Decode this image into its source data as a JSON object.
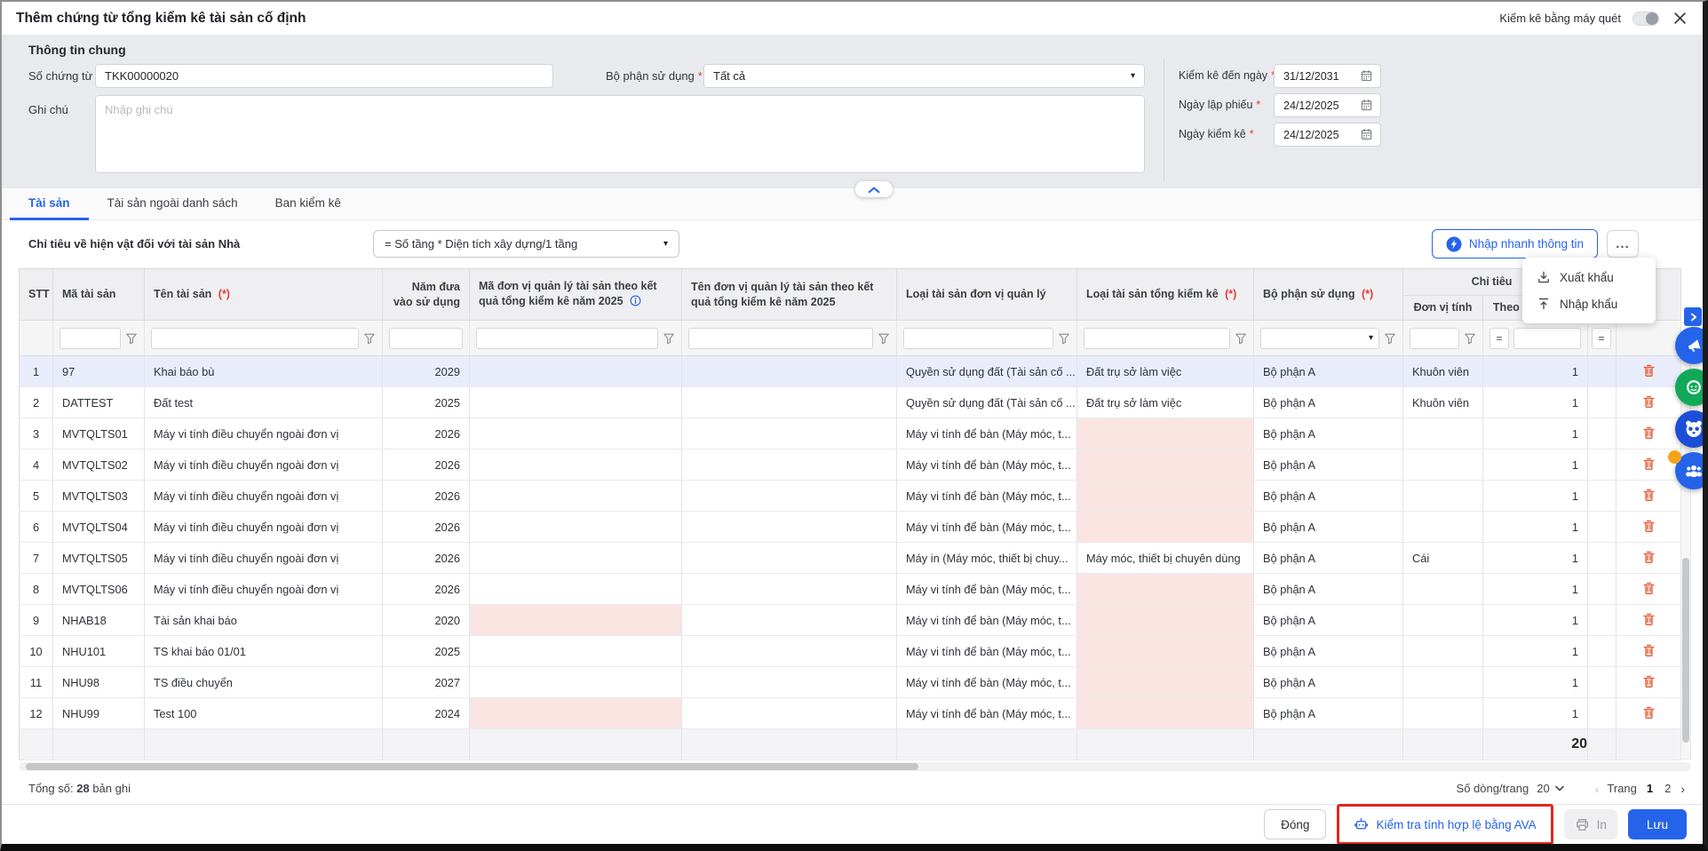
{
  "colors": {
    "accent": "#2563eb",
    "primary_button": "#2563eb",
    "active_tab": "#2563eb",
    "danger_icon": "#e8603c",
    "invalid_cell_bg": "#fae5e2",
    "highlight_row_bg": "#e9ecfb",
    "annotation_box": "#e0281e"
  },
  "titlebar": {
    "title": "Thêm chứng từ tổng kiểm kê tài sản cố định",
    "scan_toggle_label": "Kiểm kê bằng máy quét"
  },
  "general": {
    "section_title": "Thông tin chung",
    "so_chung_tu_label": "Số chứng từ",
    "so_chung_tu_value": "TKK00000020",
    "bo_phan_label": "Bộ phận sử dụng",
    "bo_phan_value": "Tất cả",
    "ghi_chu_label": "Ghi chú",
    "ghi_chu_placeholder": "Nhập ghi chú",
    "kiem_ke_den_ngay_label": "Kiểm kê đến ngày",
    "kiem_ke_den_ngay_value": "31/12/2031",
    "ngay_lap_phieu_label": "Ngày lập phiếu",
    "ngay_lap_phieu_value": "24/12/2025",
    "ngay_kiem_ke_label": "Ngày kiểm kê",
    "ngay_kiem_ke_value": "24/12/2025"
  },
  "tabs": [
    {
      "label": "Tài sản"
    },
    {
      "label": "Tài sản ngoài danh sách"
    },
    {
      "label": "Ban kiểm kê"
    }
  ],
  "toolbar": {
    "criteria_label": "Chỉ tiêu về hiện vật đối với tài sản",
    "criteria_asset_type": "Nhà",
    "formula_value": "= Số tầng * Diện tích xây dựng/1 tầng",
    "quick_input_label": "Nhập nhanh thông tin",
    "more_label": "...",
    "menu_items": [
      {
        "label": "Xuất khẩu"
      },
      {
        "label": "Nhập khẩu"
      }
    ]
  },
  "table": {
    "headers": {
      "stt": "STT",
      "ma": "Mã tài sản",
      "ten": "Tên tài sản",
      "nam": "Năm đưa vào sử dụng",
      "madv": "Mã đơn vị quản lý tài sản theo kết quả tổng kiểm kê năm 2025",
      "tendv": "Tên đơn vị quản lý tài sản theo kết quả tổng kiểm kê năm 2025",
      "loaidv": "Loại tài sản đơn vị quản lý",
      "loaitkk": "Loại tài sản tổng kiểm kê",
      "bophan": "Bộ phận sử dụng",
      "group": "Chỉ tiêu",
      "dvt": "Đơn vị tính",
      "theoso": "Theo số kế toán",
      "req": "(*)"
    },
    "rows": [
      {
        "stt": "1",
        "ma": "97",
        "ten": "Khai báo bù",
        "nam": "2029",
        "madv": "",
        "tendv": "",
        "loaidv": "Quyền sử dụng đất (Tài sản cố ...",
        "loaitkk": "Đất trụ sở làm việc",
        "bophan": "Bộ phận A",
        "dvt": "Khuôn viên",
        "theoso": "1",
        "partial": "",
        "highlight": true,
        "invalid": []
      },
      {
        "stt": "2",
        "ma": "DATTEST",
        "ten": "Đất test",
        "nam": "2025",
        "madv": "",
        "tendv": "",
        "loaidv": "Quyền sử dụng đất (Tài sản cố ...",
        "loaitkk": "Đất trụ sở làm việc",
        "bophan": "Bộ phận A",
        "dvt": "Khuôn viên",
        "theoso": "1",
        "partial": "",
        "highlight": false,
        "invalid": []
      },
      {
        "stt": "3",
        "ma": "MVTQLTS01",
        "ten": "Máy vi tính điều chuyển ngoài đơn vị",
        "nam": "2026",
        "madv": "",
        "tendv": "",
        "loaidv": "Máy vi tính để bàn (Máy móc, t...",
        "loaitkk": "",
        "bophan": "Bộ phận A",
        "dvt": "",
        "theoso": "1",
        "partial": "",
        "highlight": false,
        "invalid": [
          "loaitkk"
        ]
      },
      {
        "stt": "4",
        "ma": "MVTQLTS02",
        "ten": "Máy vi tính điều chuyển ngoài đơn vị",
        "nam": "2026",
        "madv": "",
        "tendv": "",
        "loaidv": "Máy vi tính để bàn (Máy móc, t...",
        "loaitkk": "",
        "bophan": "Bộ phận A",
        "dvt": "",
        "theoso": "1",
        "partial": "",
        "highlight": false,
        "invalid": [
          "loaitkk"
        ]
      },
      {
        "stt": "5",
        "ma": "MVTQLTS03",
        "ten": "Máy vi tính điều chuyển ngoài đơn vị",
        "nam": "2026",
        "madv": "",
        "tendv": "",
        "loaidv": "Máy vi tính để bàn (Máy móc, t...",
        "loaitkk": "",
        "bophan": "Bộ phận A",
        "dvt": "",
        "theoso": "1",
        "partial": "",
        "highlight": false,
        "invalid": [
          "loaitkk"
        ]
      },
      {
        "stt": "6",
        "ma": "MVTQLTS04",
        "ten": "Máy vi tính điều chuyển ngoài đơn vị",
        "nam": "2026",
        "madv": "",
        "tendv": "",
        "loaidv": "Máy vi tính để bàn (Máy móc, t...",
        "loaitkk": "",
        "bophan": "Bộ phận A",
        "dvt": "",
        "theoso": "1",
        "partial": "",
        "highlight": false,
        "invalid": [
          "loaitkk"
        ]
      },
      {
        "stt": "7",
        "ma": "MVTQLTS05",
        "ten": "Máy vi tính điều chuyển ngoài đơn vị",
        "nam": "2026",
        "madv": "",
        "tendv": "",
        "loaidv": "Máy in (Máy móc, thiết bị chuy...",
        "loaitkk": "Máy móc, thiết bị chuyên dùng",
        "bophan": "Bộ phận A",
        "dvt": "Cái",
        "theoso": "1",
        "partial": "",
        "highlight": false,
        "invalid": []
      },
      {
        "stt": "8",
        "ma": "MVTQLTS06",
        "ten": "Máy vi tính điều chuyển ngoài đơn vị",
        "nam": "2026",
        "madv": "",
        "tendv": "",
        "loaidv": "Máy vi tính để bàn (Máy móc, t...",
        "loaitkk": "",
        "bophan": "Bộ phận A",
        "dvt": "",
        "theoso": "1",
        "partial": "",
        "highlight": false,
        "invalid": [
          "loaitkk"
        ]
      },
      {
        "stt": "9",
        "ma": "NHAB18",
        "ten": "Tài sản khai báo",
        "nam": "2020",
        "madv": "",
        "tendv": "",
        "loaidv": "Máy vi tính để bàn (Máy móc, t...",
        "loaitkk": "",
        "bophan": "Bộ phận A",
        "dvt": "",
        "theoso": "1",
        "partial": "",
        "highlight": false,
        "invalid": [
          "madv",
          "loaitkk"
        ]
      },
      {
        "stt": "10",
        "ma": "NHU101",
        "ten": "TS khai báo 01/01",
        "nam": "2025",
        "madv": "",
        "tendv": "",
        "loaidv": "Máy vi tính để bàn (Máy móc, t...",
        "loaitkk": "",
        "bophan": "Bộ phận A",
        "dvt": "",
        "theoso": "1",
        "partial": "",
        "highlight": false,
        "invalid": [
          "loaitkk"
        ]
      },
      {
        "stt": "11",
        "ma": "NHU98",
        "ten": "TS điều chuyển",
        "nam": "2027",
        "madv": "",
        "tendv": "",
        "loaidv": "Máy vi tính để bàn (Máy móc, t...",
        "loaitkk": "",
        "bophan": "Bộ phận A",
        "dvt": "",
        "theoso": "1",
        "partial": "",
        "highlight": false,
        "invalid": [
          "loaitkk"
        ]
      },
      {
        "stt": "12",
        "ma": "NHU99",
        "ten": "Test 100",
        "nam": "2024",
        "madv": "",
        "tendv": "",
        "loaidv": "Máy vi tính để bàn (Máy móc, t...",
        "loaitkk": "",
        "bophan": "Bộ phận A",
        "dvt": "",
        "theoso": "1",
        "partial": "",
        "highlight": false,
        "invalid": [
          "madv",
          "loaitkk"
        ]
      }
    ],
    "summary_total": "20"
  },
  "footer": {
    "total_label": "Tổng số:",
    "total_count": "28",
    "total_suffix": "bản ghi",
    "rows_per_page_label": "Số dòng/trang",
    "rows_per_page_value": "20",
    "page_label": "Trang",
    "pages": [
      "1",
      "2"
    ],
    "close_label": "Đóng",
    "ava_label": "Kiểm tra tính hợp lệ bằng AVA",
    "print_label": "In",
    "save_label": "Lưu"
  }
}
